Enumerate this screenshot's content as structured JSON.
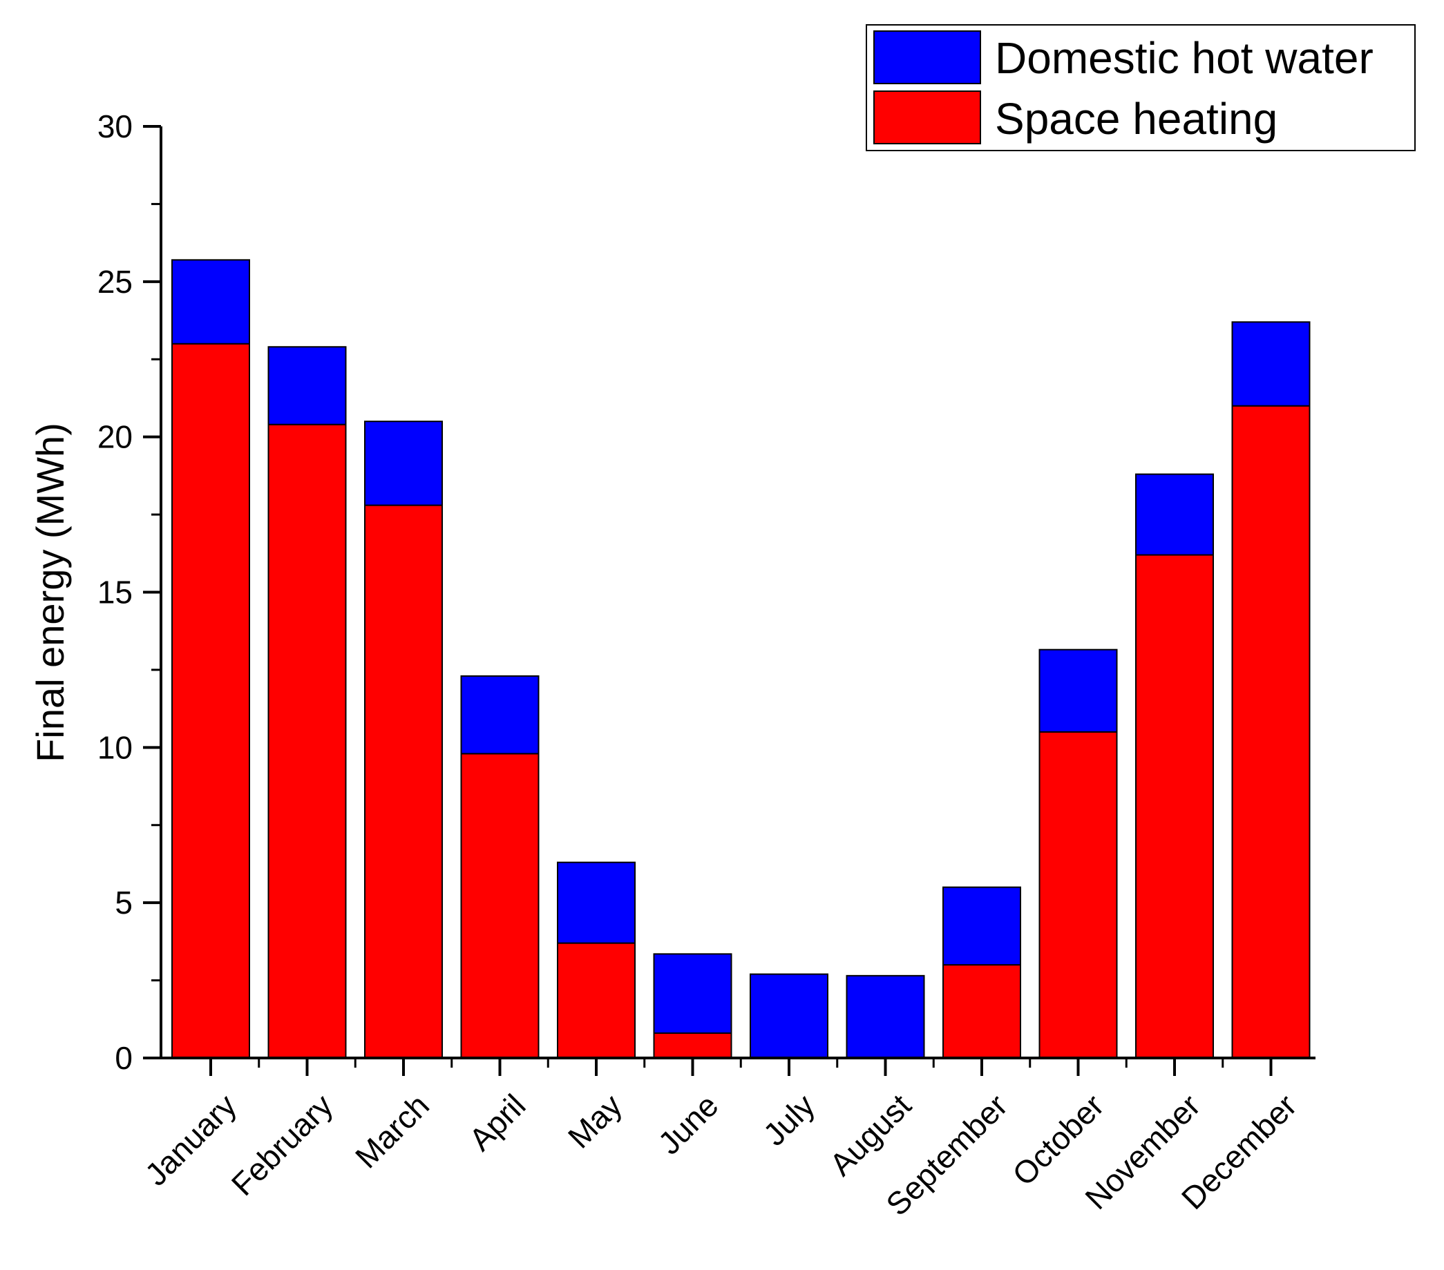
{
  "chart_data": {
    "type": "bar",
    "stacked": true,
    "categories": [
      "January",
      "February",
      "March",
      "April",
      "May",
      "June",
      "July",
      "August",
      "September",
      "October",
      "November",
      "December"
    ],
    "series": [
      {
        "name": "Space heating",
        "color": "#ff0000",
        "values": [
          23.0,
          20.4,
          17.8,
          9.8,
          3.7,
          0.8,
          0.0,
          0.0,
          3.0,
          10.5,
          16.2,
          21.0
        ]
      },
      {
        "name": "Domestic hot water",
        "color": "#0000ff",
        "values": [
          2.7,
          2.5,
          2.7,
          2.5,
          2.6,
          2.55,
          2.7,
          2.65,
          2.5,
          2.65,
          2.6,
          2.7
        ]
      }
    ],
    "title": "",
    "xlabel": "",
    "ylabel": "Final energy (MWh)",
    "ylim": [
      0,
      30
    ],
    "yticks": [
      "0",
      "5",
      "10",
      "15",
      "20",
      "25",
      "30"
    ],
    "grid": false,
    "legend": {
      "placement": "top-right",
      "entries": [
        "Domestic hot water",
        "Space heating"
      ]
    }
  }
}
